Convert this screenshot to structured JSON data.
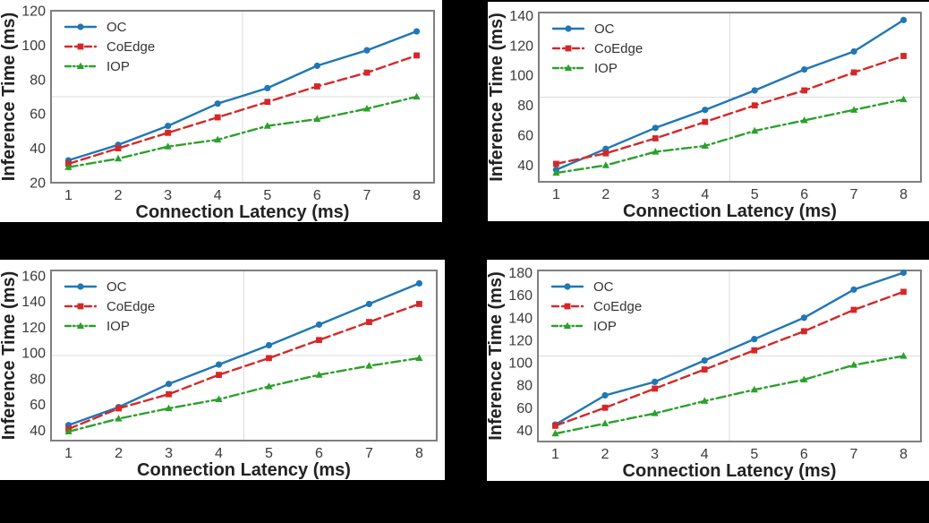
{
  "figure": {
    "background_color": "#000000",
    "panel_background_color": "#ffffff",
    "spine_color": "#7f7f7f",
    "grid_color": "#dcdcdc",
    "tick_label_color": "#3a3a3a",
    "axis_label_color": "#222222",
    "legend_text_color": "#333333"
  },
  "series_styles": [
    {
      "name": "OC",
      "color": "#1f77b4",
      "linestyle": "solid",
      "marker": "circle"
    },
    {
      "name": "CoEdge",
      "color": "#d62728",
      "linestyle": "dashed",
      "marker": "square"
    },
    {
      "name": "IOP",
      "color": "#2ca02c",
      "linestyle": "dashdot",
      "marker": "triangle"
    }
  ],
  "chart_data": [
    {
      "id": "top-left",
      "type": "line",
      "title": "",
      "xlabel": "Connection Latency (ms)",
      "ylabel": "Inference Time (ms)",
      "x": [
        1,
        2,
        3,
        4,
        5,
        6,
        7,
        8
      ],
      "xticks": [
        1,
        2,
        3,
        4,
        5,
        6,
        7,
        8
      ],
      "xlim": [
        0.65,
        8.35
      ],
      "ylim": [
        20,
        120
      ],
      "yticks": [
        20,
        40,
        60,
        80,
        100,
        120
      ],
      "grid": "center-crosshair",
      "legend_position": "upper-left",
      "series": [
        {
          "name": "OC",
          "values": [
            33,
            42,
            53,
            66,
            75,
            88,
            97,
            108
          ]
        },
        {
          "name": "CoEdge",
          "values": [
            31,
            40,
            49,
            58,
            67,
            76,
            84,
            94
          ]
        },
        {
          "name": "IOP",
          "values": [
            29,
            34,
            41,
            45,
            53,
            57,
            63,
            70
          ]
        }
      ]
    },
    {
      "id": "top-right",
      "type": "line",
      "title": "",
      "xlabel": "Connection Latency (ms)",
      "ylabel": "Inference Time (ms)",
      "x": [
        1,
        2,
        3,
        4,
        5,
        6,
        7,
        8
      ],
      "xticks": [
        1,
        2,
        3,
        4,
        5,
        6,
        7,
        8
      ],
      "xlim": [
        0.65,
        8.35
      ],
      "ylim": [
        29,
        142
      ],
      "yticks": [
        40,
        60,
        80,
        100,
        120,
        140
      ],
      "grid": "center-crosshair",
      "legend_position": "upper-left",
      "series": [
        {
          "name": "OC",
          "values": [
            37,
            51,
            65,
            77,
            90,
            104,
            116,
            137
          ]
        },
        {
          "name": "CoEdge",
          "values": [
            41,
            48,
            58,
            69,
            80,
            90,
            102,
            113
          ]
        },
        {
          "name": "IOP",
          "values": [
            35,
            40,
            49,
            53,
            63,
            70,
            77,
            84
          ]
        }
      ]
    },
    {
      "id": "bottom-left",
      "type": "line",
      "title": "",
      "xlabel": "Connection Latency (ms)",
      "ylabel": "Inference Time (ms)",
      "x": [
        1,
        2,
        3,
        4,
        5,
        6,
        7,
        8
      ],
      "xticks": [
        1,
        2,
        3,
        4,
        5,
        6,
        7,
        8
      ],
      "xlim": [
        0.65,
        8.35
      ],
      "ylim": [
        32,
        164
      ],
      "yticks": [
        40,
        60,
        80,
        100,
        120,
        140,
        160
      ],
      "grid": "center-crosshair",
      "legend_position": "upper-left",
      "series": [
        {
          "name": "OC",
          "values": [
            44,
            58,
            76,
            91,
            106,
            122,
            138,
            154
          ]
        },
        {
          "name": "CoEdge",
          "values": [
            41,
            57,
            68,
            83,
            96,
            110,
            124,
            138
          ]
        },
        {
          "name": "IOP",
          "values": [
            39,
            49,
            57,
            64,
            74,
            83,
            90,
            96
          ]
        }
      ]
    },
    {
      "id": "bottom-right",
      "type": "line",
      "title": "",
      "xlabel": "Connection Latency (ms)",
      "ylabel": "Inference Time (ms)",
      "x": [
        1,
        2,
        3,
        4,
        5,
        6,
        7,
        8
      ],
      "xticks": [
        1,
        2,
        3,
        4,
        5,
        6,
        7,
        8
      ],
      "xlim": [
        0.65,
        8.35
      ],
      "ylim": [
        30,
        182
      ],
      "yticks": [
        40,
        60,
        80,
        100,
        120,
        140,
        160,
        180
      ],
      "grid": "center-crosshair",
      "legend_position": "upper-left",
      "series": [
        {
          "name": "OC",
          "values": [
            45,
            71,
            83,
            102,
            121,
            140,
            165,
            180
          ]
        },
        {
          "name": "CoEdge",
          "values": [
            44,
            60,
            77,
            94,
            111,
            128,
            147,
            163
          ]
        },
        {
          "name": "IOP",
          "values": [
            37,
            46,
            55,
            66,
            76,
            85,
            98,
            106
          ]
        }
      ]
    }
  ]
}
